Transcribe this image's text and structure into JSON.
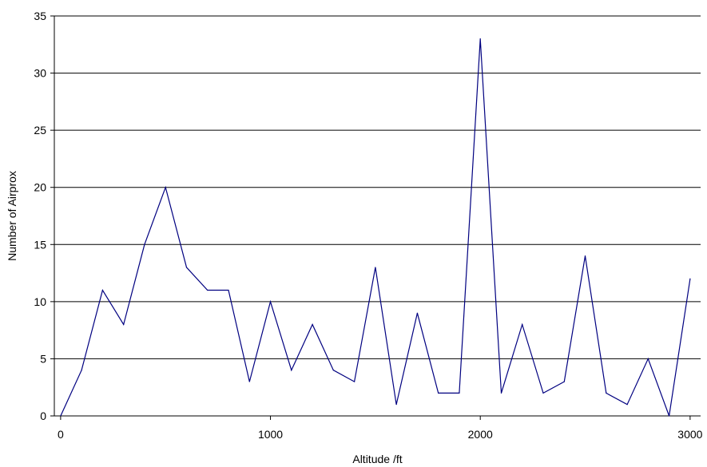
{
  "chart_data": {
    "type": "line",
    "title": "",
    "xlabel": "Altitude /ft",
    "ylabel": "Number of Airprox",
    "xlim": [
      -30,
      3050
    ],
    "ylim": [
      0,
      35
    ],
    "x_ticks": [
      0,
      1000,
      2000,
      3000
    ],
    "y_ticks": [
      0,
      5,
      10,
      15,
      20,
      25,
      30,
      35
    ],
    "grid": "horizontal",
    "legend": "none",
    "series": [
      {
        "color": "#000080",
        "x": [
          0,
          100,
          200,
          300,
          400,
          500,
          600,
          700,
          800,
          900,
          1000,
          1100,
          1200,
          1300,
          1400,
          1500,
          1600,
          1700,
          1800,
          1900,
          2000,
          2100,
          2200,
          2300,
          2400,
          2500,
          2600,
          2700,
          2800,
          2900,
          3000
        ],
        "y": [
          0,
          4,
          11,
          8,
          15,
          20,
          13,
          11,
          11,
          3,
          10,
          4,
          8,
          4,
          3,
          13,
          1,
          9,
          2,
          2,
          33,
          2,
          8,
          2,
          3,
          14,
          2,
          1,
          5,
          0,
          12
        ]
      }
    ]
  }
}
